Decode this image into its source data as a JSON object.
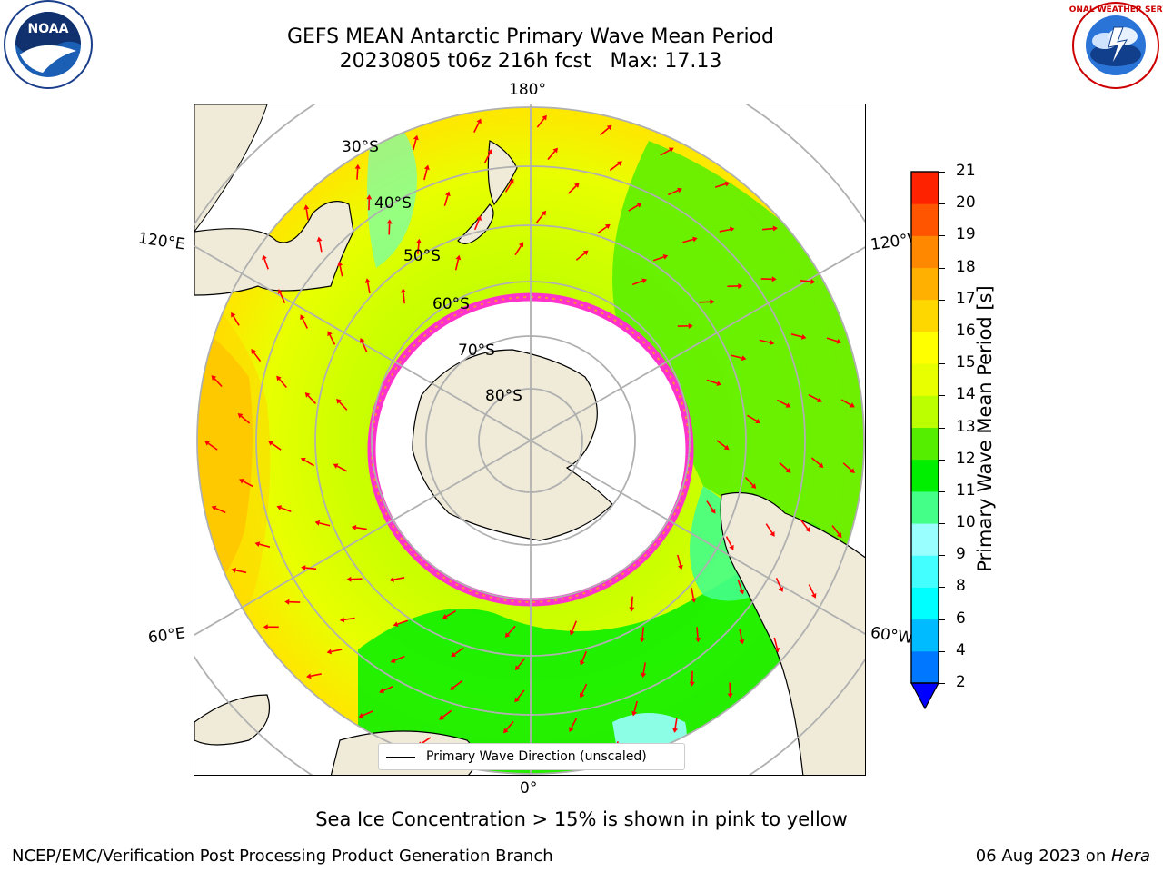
{
  "header": {
    "title_line1": "GEFS MEAN Antarctic Primary Wave Mean Period",
    "title_line2": "20230805 t06z 216h fcst   Max: 17.13"
  },
  "logos": {
    "noaa_text": "NOAA",
    "noaa_ring": "NATIONAL OCEANIC AND ATMOSPHERIC ADMINISTRATION · U.S. DEPARTMENT OF COMMERCE",
    "nws_ring": "NATIONAL WEATHER SERVICE"
  },
  "map": {
    "lon_labels": {
      "top": "180°",
      "bottom": "0°",
      "upper_left": "120°E",
      "upper_right": "120°W",
      "lower_left": "60°E",
      "lower_right": "60°W"
    },
    "lat_labels": [
      "30°S",
      "40°S",
      "50°S",
      "60°S",
      "70°S",
      "80°S"
    ],
    "legend": "Primary Wave Direction (unscaled)",
    "colors": {
      "land": "#efebd8",
      "arrow": "#ff0000",
      "sea_ice_edge": "#ff33cc"
    }
  },
  "colorbar": {
    "label": "Primary Wave Mean Period [s]",
    "ticks": [
      "2",
      "4",
      "6",
      "8",
      "9",
      "10",
      "11",
      "12",
      "13",
      "14",
      "15",
      "16",
      "17",
      "18",
      "19",
      "20",
      "21"
    ],
    "colors": [
      "#0077ff",
      "#00bbff",
      "#00ffff",
      "#44ffff",
      "#99ffff",
      "#44ff88",
      "#00ee00",
      "#55ee00",
      "#bbff00",
      "#e8ff00",
      "#ffff00",
      "#ffd700",
      "#ffb000",
      "#ff8800",
      "#ff5500",
      "#ff2200",
      "#ff0000"
    ],
    "extend_color": "#0000ff"
  },
  "note": "Sea Ice Concentration > 15% is shown in pink to yellow",
  "footer": {
    "left": "NCEP/EMC/Verification Post Processing Product Generation Branch",
    "right_date": "06 Aug 2023 on ",
    "right_host": "Hera"
  }
}
